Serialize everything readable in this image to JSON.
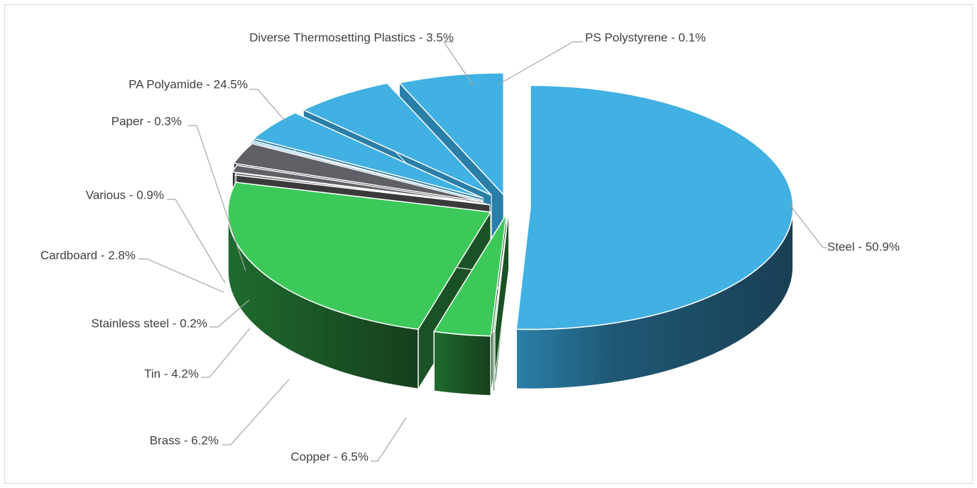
{
  "chart_data": {
    "type": "pie",
    "style": "3d-exploded",
    "title": "",
    "legend": "none",
    "data_labels": "outside-with-leader-lines",
    "slices": [
      {
        "category": "Steel",
        "label": "Steel - 50.9%",
        "value": 50.9,
        "color": "#41B0E2",
        "side_color": "#1F4E68"
      },
      {
        "category": "PS Polystyrene",
        "label": "PS Polystyrene - 0.1%",
        "value": 0.1,
        "color": "#3CC95A",
        "side_color": "#1B5225"
      },
      {
        "category": "Diverse Thermosetting Plastics",
        "label": "Diverse Thermosetting Plastics - 3.5%",
        "value": 3.5,
        "color": "#3CC95A",
        "side_color": "#1B5225"
      },
      {
        "category": "PA Polyamide",
        "label": "PA Polyamide - 24.5%",
        "value": 24.5,
        "color": "#3CC95A",
        "side_color": "#1B5225"
      },
      {
        "category": "Paper",
        "label": "Paper - 0.3%",
        "value": 0.3,
        "color": "#6B6B6B",
        "side_color": "#3A3A3A"
      },
      {
        "category": "Various",
        "label": "Various - 0.9%",
        "value": 0.9,
        "color": "#5F6166",
        "side_color": "#333438"
      },
      {
        "category": "Cardboard",
        "label": "Cardboard - 2.8%",
        "value": 2.8,
        "color": "#5E6065",
        "side_color": "#2F3034"
      },
      {
        "category": "Stainless steel",
        "label": "Stainless steel - 0.2%",
        "value": 0.2,
        "color": "#41B0E2",
        "side_color": "#2A7FA8"
      },
      {
        "category": "Tin",
        "label": "Tin - 4.2%",
        "value": 4.2,
        "color": "#41B0E2",
        "side_color": "#2A7FA8"
      },
      {
        "category": "Brass",
        "label": "Brass - 6.2%",
        "value": 6.2,
        "color": "#41B0E2",
        "side_color": "#2A7FA8"
      },
      {
        "category": "Copper",
        "label": "Copper - 6.5%",
        "value": 6.5,
        "color": "#41B0E2",
        "side_color": "#2A7FA8"
      }
    ]
  }
}
